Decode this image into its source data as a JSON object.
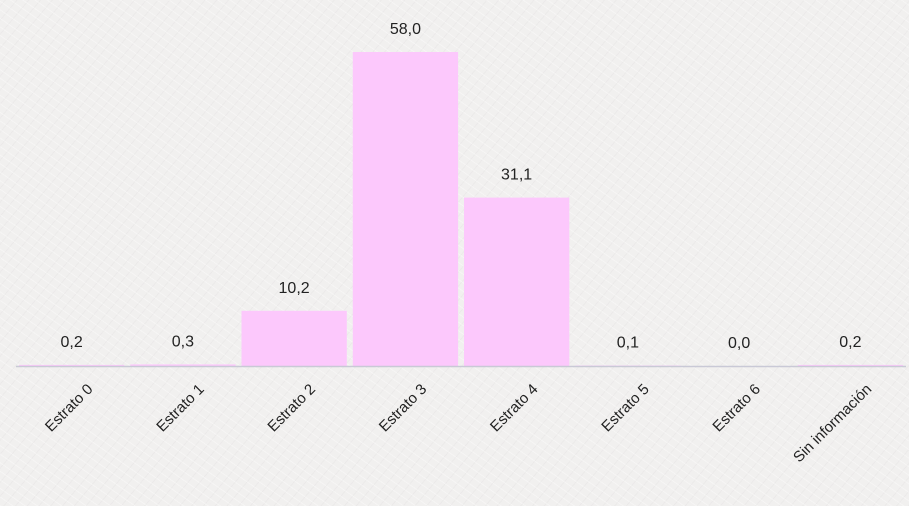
{
  "chart_data": {
    "type": "bar",
    "categories": [
      "Estrato 0",
      "Estrato 1",
      "Estrato 2",
      "Estrato 3",
      "Estrato 4",
      "Estrato 5",
      "Estrato 6",
      "Sin información"
    ],
    "values": [
      0.2,
      0.3,
      10.2,
      58.0,
      31.1,
      0.1,
      0.0,
      0.2
    ],
    "value_labels": [
      "0,2",
      "0,3",
      "10,2",
      "58,0",
      "31,1",
      "0,1",
      "0,0",
      "0,2"
    ],
    "title": "",
    "xlabel": "",
    "ylabel": "",
    "ylim": [
      0,
      58.0
    ],
    "grid": false,
    "legend": "none",
    "bar_color": "#fcc8fc",
    "axis_color": "#c9c9d6"
  }
}
